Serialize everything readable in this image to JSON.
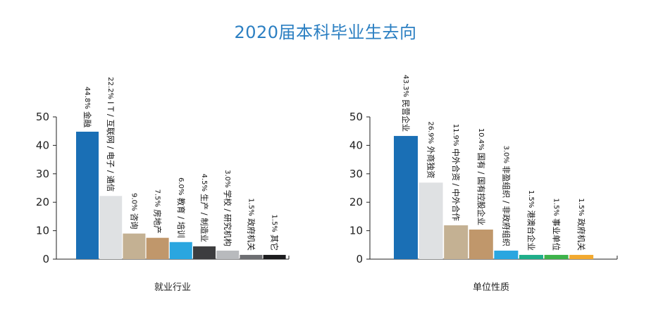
{
  "title": "2020届本科毕业生去向",
  "chart_data": [
    {
      "type": "bar",
      "xlabel": "就业行业",
      "ylabel": "",
      "ylim": [
        0,
        50
      ],
      "yticks": [
        0,
        10,
        20,
        30,
        40,
        50
      ],
      "categories": [
        "金融",
        "IT/互联网/电子/通信",
        "咨询",
        "房地产",
        "教育/培训",
        "生产/制造业",
        "学校/研究机构",
        "政府机关",
        "其它"
      ],
      "display_labels": [
        "金融",
        "I T / 互联网 / 电子 / 通信",
        "咨询",
        "房地产",
        "教育 / 培训",
        "生产 / 制造业",
        "学校 / 研究机构",
        "政府机关",
        "其它"
      ],
      "values": [
        44.8,
        22.2,
        9.0,
        7.5,
        6.0,
        4.5,
        3.0,
        1.5,
        1.5
      ],
      "value_labels": [
        "44.8%",
        "22.2%",
        "9.0%",
        "7.5%",
        "6.0%",
        "4.5%",
        "3.0%",
        "1.5%",
        "1.5%"
      ],
      "colors": [
        "#1a6fb5",
        "#dfe1e3",
        "#c4b193",
        "#c0976b",
        "#2aa6e0",
        "#3d3d3f",
        "#b8babd",
        "#6d6e72",
        "#1c1c1e"
      ]
    },
    {
      "type": "bar",
      "xlabel": "单位性质",
      "ylabel": "",
      "ylim": [
        0,
        50
      ],
      "yticks": [
        0,
        10,
        20,
        30,
        40,
        50
      ],
      "categories": [
        "民营企业",
        "外商独资",
        "中外合资/中外合作",
        "国有/国有控股企业",
        "非盈组织/非政府组织",
        "港澳台企业",
        "事业单位",
        "政府机关"
      ],
      "display_labels": [
        "民营企业",
        "外商独资",
        "中外合资 / 中外合作",
        "国有 / 国有控股企业",
        "非盈组织 / 非政府组织",
        "港澳台企业",
        "事业单位",
        "政府机关"
      ],
      "values": [
        43.3,
        26.9,
        11.9,
        10.4,
        3.0,
        1.5,
        1.5,
        1.5
      ],
      "value_labels": [
        "43.3%",
        "26.9%",
        "11.9%",
        "10.4%",
        "3.0%",
        "1.5%",
        "1.5%",
        "1.5%"
      ],
      "colors": [
        "#1a6fb5",
        "#dfe1e3",
        "#c4b193",
        "#c0976b",
        "#2aa6e0",
        "#1fae8a",
        "#3db34a",
        "#f2a92f"
      ]
    }
  ]
}
